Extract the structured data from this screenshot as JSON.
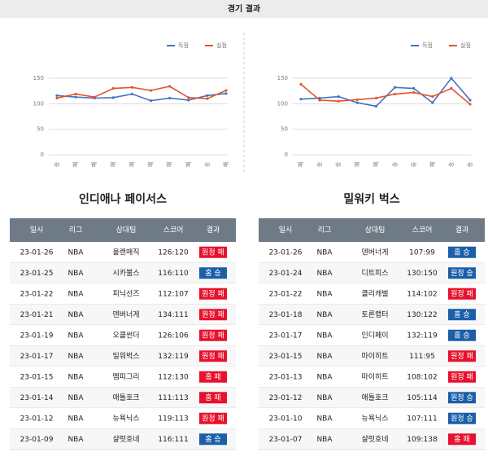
{
  "header": {
    "title": "경기 결과"
  },
  "chart_data": [
    {
      "type": "line",
      "categories": [
        "승",
        "패",
        "패",
        "패",
        "패",
        "패",
        "패",
        "패",
        "승",
        "패"
      ],
      "series": [
        {
          "name": "득점",
          "color": "#4472c4",
          "values": [
            116,
            113,
            111,
            112,
            119,
            106,
            111,
            107,
            116,
            120
          ]
        },
        {
          "name": "실점",
          "color": "#e5532d",
          "values": [
            111,
            119,
            113,
            130,
            132,
            126,
            134,
            112,
            110,
            126
          ]
        }
      ],
      "ylim": [
        0,
        150
      ],
      "yticks": [
        0,
        50,
        100,
        150
      ],
      "grid": true
    },
    {
      "type": "line",
      "categories": [
        "패",
        "승",
        "승",
        "패",
        "패",
        "승",
        "승",
        "패",
        "승",
        "승"
      ],
      "series": [
        {
          "name": "득점",
          "color": "#4472c4",
          "values": [
            109,
            111,
            114,
            102,
            95,
            132,
            130,
            102,
            150,
            107
          ]
        },
        {
          "name": "실점",
          "color": "#e5532d",
          "values": [
            138,
            107,
            105,
            108,
            111,
            119,
            122,
            114,
            130,
            99
          ]
        }
      ],
      "ylim": [
        0,
        150
      ],
      "yticks": [
        0,
        50,
        100,
        150
      ],
      "grid": true
    }
  ],
  "tables": [
    {
      "title": "인디애나 페이서스",
      "columns": [
        "일시",
        "리그",
        "상대팀",
        "스코어",
        "결과"
      ],
      "rows": [
        {
          "date": "23-01-26",
          "league": "NBA",
          "opponent": "올랜매직",
          "score": "126:120",
          "result": "원정 패",
          "result_color": "#e8112d"
        },
        {
          "date": "23-01-25",
          "league": "NBA",
          "opponent": "시카불스",
          "score": "116:110",
          "result": "홈 승",
          "result_color": "#1a5fa8"
        },
        {
          "date": "23-01-22",
          "league": "NBA",
          "opponent": "피닉선즈",
          "score": "112:107",
          "result": "원정 패",
          "result_color": "#e8112d"
        },
        {
          "date": "23-01-21",
          "league": "NBA",
          "opponent": "덴버너게",
          "score": "134:111",
          "result": "원정 패",
          "result_color": "#e8112d"
        },
        {
          "date": "23-01-19",
          "league": "NBA",
          "opponent": "오클썬더",
          "score": "126:106",
          "result": "원정 패",
          "result_color": "#e8112d"
        },
        {
          "date": "23-01-17",
          "league": "NBA",
          "opponent": "밀워벅스",
          "score": "132:119",
          "result": "원정 패",
          "result_color": "#e8112d"
        },
        {
          "date": "23-01-15",
          "league": "NBA",
          "opponent": "멤피그리",
          "score": "112:130",
          "result": "홈 패",
          "result_color": "#e8112d"
        },
        {
          "date": "23-01-14",
          "league": "NBA",
          "opponent": "애틀호크",
          "score": "111:113",
          "result": "홈 패",
          "result_color": "#e8112d"
        },
        {
          "date": "23-01-12",
          "league": "NBA",
          "opponent": "뉴욕닉스",
          "score": "119:113",
          "result": "원정 패",
          "result_color": "#e8112d"
        },
        {
          "date": "23-01-09",
          "league": "NBA",
          "opponent": "샬럿호네",
          "score": "116:111",
          "result": "홈 승",
          "result_color": "#1a5fa8"
        }
      ]
    },
    {
      "title": "밀워키 벅스",
      "columns": [
        "일시",
        "리그",
        "상대팀",
        "스코어",
        "결과"
      ],
      "rows": [
        {
          "date": "23-01-26",
          "league": "NBA",
          "opponent": "덴버너게",
          "score": "107:99",
          "result": "홈 승",
          "result_color": "#1a5fa8"
        },
        {
          "date": "23-01-24",
          "league": "NBA",
          "opponent": "디트피스",
          "score": "130:150",
          "result": "원정 승",
          "result_color": "#1a5fa8"
        },
        {
          "date": "23-01-22",
          "league": "NBA",
          "opponent": "클리캐벌",
          "score": "114:102",
          "result": "원정 패",
          "result_color": "#e8112d"
        },
        {
          "date": "23-01-18",
          "league": "NBA",
          "opponent": "토론랩터",
          "score": "130:122",
          "result": "홈 승",
          "result_color": "#1a5fa8"
        },
        {
          "date": "23-01-17",
          "league": "NBA",
          "opponent": "인디페이",
          "score": "132:119",
          "result": "홈 승",
          "result_color": "#1a5fa8"
        },
        {
          "date": "23-01-15",
          "league": "NBA",
          "opponent": "마이히트",
          "score": "111:95",
          "result": "원정 패",
          "result_color": "#e8112d"
        },
        {
          "date": "23-01-13",
          "league": "NBA",
          "opponent": "마이히트",
          "score": "108:102",
          "result": "원정 패",
          "result_color": "#e8112d"
        },
        {
          "date": "23-01-12",
          "league": "NBA",
          "opponent": "애틀호크",
          "score": "105:114",
          "result": "원정 승",
          "result_color": "#1a5fa8"
        },
        {
          "date": "23-01-10",
          "league": "NBA",
          "opponent": "뉴욕닉스",
          "score": "107:111",
          "result": "원정 승",
          "result_color": "#1a5fa8"
        },
        {
          "date": "23-01-07",
          "league": "NBA",
          "opponent": "샬럿호네",
          "score": "109:138",
          "result": "홈 패",
          "result_color": "#e8112d"
        }
      ]
    }
  ]
}
